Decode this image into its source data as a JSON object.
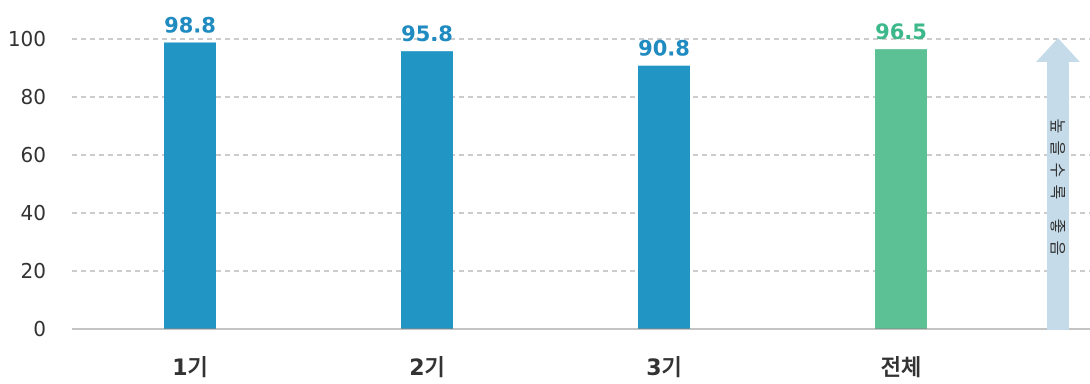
{
  "chart_data": {
    "type": "bar",
    "categories": [
      "1기",
      "2기",
      "3기",
      "전체"
    ],
    "values": [
      98.8,
      95.8,
      90.8,
      96.5
    ],
    "value_labels": [
      "98.8",
      "95.8",
      "90.8",
      "96.5"
    ],
    "bar_colors": [
      "#2196c4",
      "#2196c4",
      "#2196c4",
      "#5cc195"
    ],
    "label_colors": [
      "#1f8bc0",
      "#1f8bc0",
      "#1f8bc0",
      "#3db88a"
    ],
    "ylim": [
      0,
      100
    ],
    "yticks": [
      "0",
      "20",
      "40",
      "60",
      "80",
      "100"
    ],
    "grid": true,
    "title": "",
    "xlabel": "",
    "ylabel": "",
    "annotation": {
      "text_chars": [
        "높",
        "을",
        "수",
        "록",
        "",
        "좋",
        "음"
      ],
      "icon": "up-arrow-icon",
      "color": "#c5dbe9"
    }
  }
}
